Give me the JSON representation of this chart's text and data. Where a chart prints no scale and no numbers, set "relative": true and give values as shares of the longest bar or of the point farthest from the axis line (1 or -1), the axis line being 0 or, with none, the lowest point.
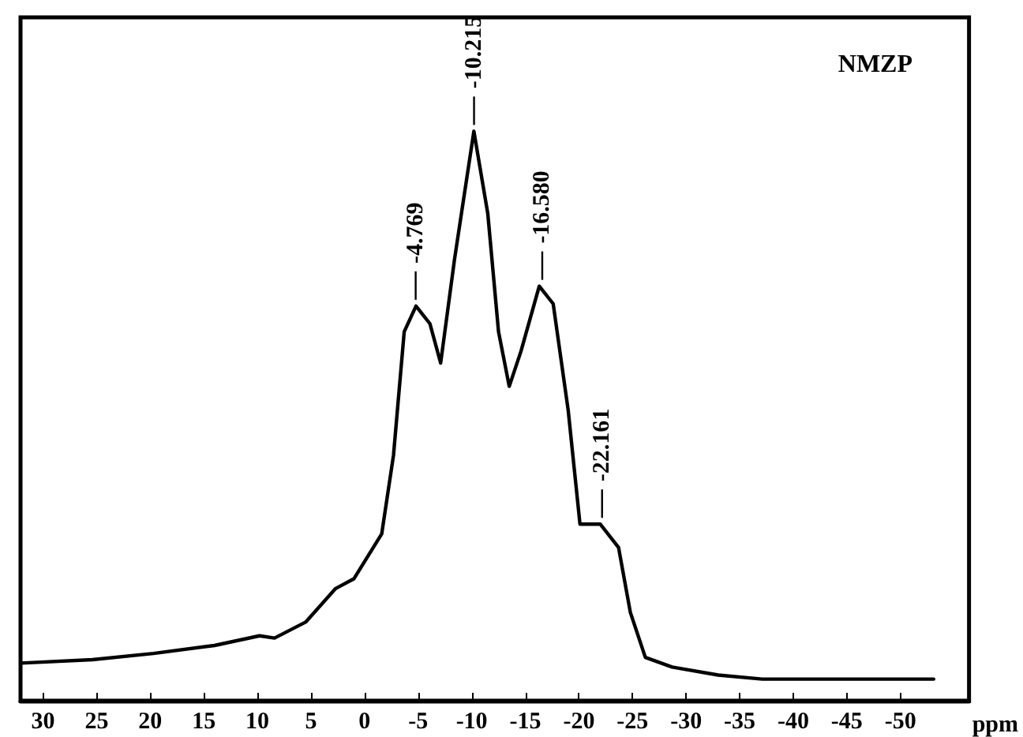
{
  "chart_data": {
    "type": "line",
    "title": "NMZP",
    "xlabel": "ppm",
    "relative": true,
    "color": "#000000",
    "x": [
      32.1,
      25.4,
      19.7,
      14.0,
      9.8,
      8.4,
      5.5,
      2.7,
      1.0,
      -1.6,
      -2.7,
      -3.7,
      -4.8,
      -6.1,
      -7.1,
      -8.4,
      -10.2,
      -11.5,
      -12.5,
      -13.5,
      -14.6,
      -16.3,
      -17.6,
      -19.0,
      -20.1,
      -22.0,
      -23.7,
      -24.8,
      -26.2,
      -28.7,
      -33.0,
      -37.1,
      -53.1
    ],
    "values": [
      0.066,
      0.072,
      0.083,
      0.097,
      0.114,
      0.11,
      0.138,
      0.197,
      0.214,
      0.293,
      0.431,
      0.648,
      0.693,
      0.662,
      0.593,
      0.776,
      1.0,
      0.855,
      0.648,
      0.552,
      0.614,
      0.728,
      0.697,
      0.51,
      0.31,
      0.31,
      0.269,
      0.155,
      0.076,
      0.059,
      0.045,
      0.038,
      0.038
    ],
    "xlim": [
      32.1,
      -56.4
    ],
    "xticks": [
      30,
      25,
      20,
      15,
      10,
      5,
      0,
      -5,
      -10,
      -15,
      -20,
      -25,
      -30,
      -35,
      -40,
      -45,
      -50
    ],
    "annotations": [
      {
        "text": "-4.769",
        "x": -4.769,
        "y": 0.693
      },
      {
        "text": "-10.215",
        "x": -10.215,
        "y": 1.0
      },
      {
        "text": "-16.580",
        "x": -16.58,
        "y": 0.728
      },
      {
        "text": "-22.161",
        "x": -22.161,
        "y": 0.31
      }
    ],
    "grid": false,
    "marker": "none",
    "line_style": "solid"
  }
}
